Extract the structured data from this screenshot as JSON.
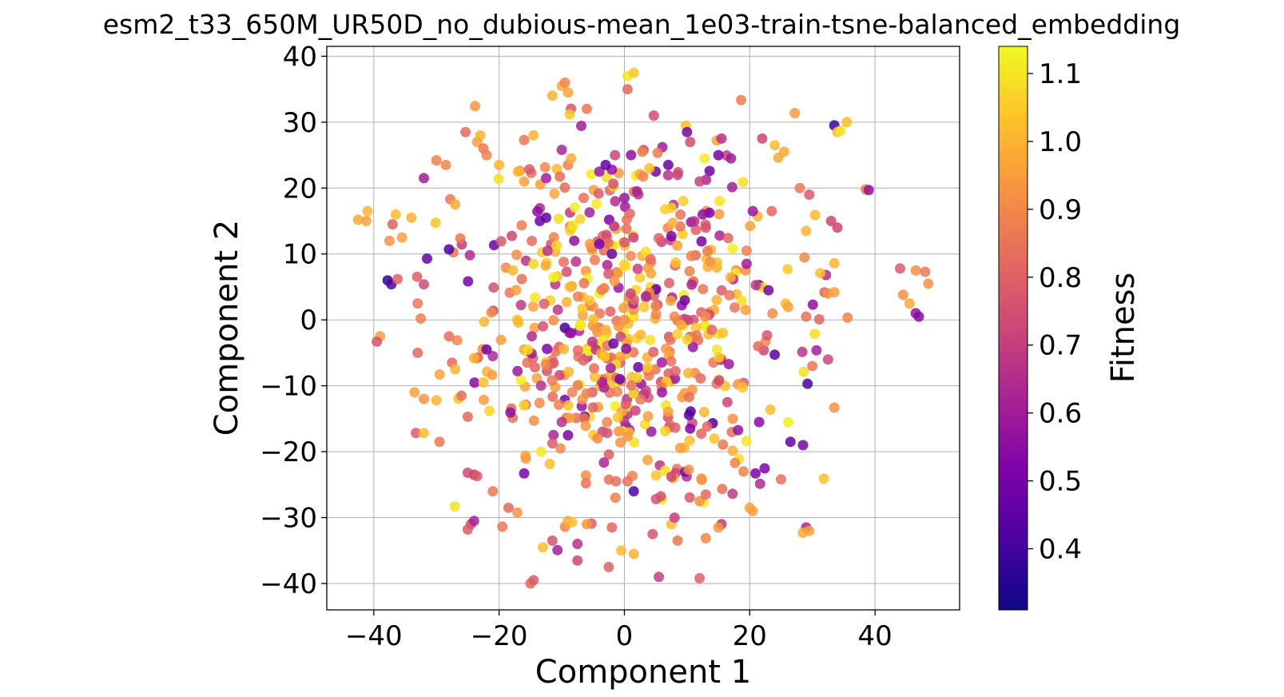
{
  "chart_data": {
    "type": "scatter",
    "title": "esm2_t33_650M_UR50D_no_dubious-mean_1e03-train-tsne-balanced_embedding",
    "xlabel": "Component 1",
    "ylabel": "Component 2",
    "xlim": [
      -47.5,
      53.5
    ],
    "ylim": [
      -44,
      41.5
    ],
    "xticks": [
      -40,
      -20,
      0,
      20,
      40
    ],
    "yticks": [
      -40,
      -30,
      -20,
      -10,
      0,
      10,
      20,
      30,
      40
    ],
    "grid": true,
    "colormap": "plasma",
    "colorbar": {
      "label": "Fitness",
      "min": 0.31,
      "max": 1.14,
      "ticks": [
        "0.4",
        "0.5",
        "0.6",
        "0.7",
        "0.8",
        "0.9",
        "1.0",
        "1.1"
      ]
    },
    "point_count": 760,
    "points": [
      {
        "x": -42.5,
        "y": 15.2,
        "c": 0.98
      },
      {
        "x": -41.0,
        "y": 16.5,
        "c": 1.0
      },
      {
        "x": -41.2,
        "y": 15.0,
        "c": 0.96
      },
      {
        "x": -37.5,
        "y": 12.0,
        "c": 0.92
      },
      {
        "x": -37.0,
        "y": 14.5,
        "c": 0.8
      },
      {
        "x": -36.5,
        "y": 16.0,
        "c": 1.02
      },
      {
        "x": -35.5,
        "y": 12.5,
        "c": 0.96
      },
      {
        "x": -34.0,
        "y": 15.5,
        "c": 1.0
      },
      {
        "x": -37.8,
        "y": 6.0,
        "c": 0.36
      },
      {
        "x": -37.2,
        "y": 5.4,
        "c": 0.42
      },
      {
        "x": -36.2,
        "y": 6.2,
        "c": 0.8
      },
      {
        "x": -39.0,
        "y": -2.5,
        "c": 0.96
      },
      {
        "x": -39.5,
        "y": -3.3,
        "c": 0.76
      },
      {
        "x": -32.0,
        "y": 21.5,
        "c": 0.6
      },
      {
        "x": -30.0,
        "y": 24.2,
        "c": 0.88
      },
      {
        "x": -28.5,
        "y": 23.5,
        "c": 0.9
      },
      {
        "x": -31.5,
        "y": 9.3,
        "c": 0.46
      },
      {
        "x": -28.0,
        "y": 10.7,
        "c": 0.42
      },
      {
        "x": -27.8,
        "y": 18.3,
        "c": 0.86
      },
      {
        "x": -27.0,
        "y": 17.5,
        "c": 0.98
      },
      {
        "x": -33.0,
        "y": 2.5,
        "c": 0.86
      },
      {
        "x": -32.5,
        "y": 0.2,
        "c": 0.88
      },
      {
        "x": -33.0,
        "y": -5.0,
        "c": 0.82
      },
      {
        "x": -33.5,
        "y": -11.0,
        "c": 0.96
      },
      {
        "x": -32.0,
        "y": -12.0,
        "c": 0.92
      },
      {
        "x": -30.0,
        "y": -12.2,
        "c": 1.0
      },
      {
        "x": -28.0,
        "y": -2.5,
        "c": 0.84
      },
      {
        "x": -27.5,
        "y": -6.5,
        "c": 0.82
      },
      {
        "x": -27.0,
        "y": -7.5,
        "c": 1.0
      },
      {
        "x": -29.5,
        "y": -18.5,
        "c": 0.86
      },
      {
        "x": -25.0,
        "y": -14.7,
        "c": 0.82
      },
      {
        "x": -25.0,
        "y": -23.2,
        "c": 0.74
      },
      {
        "x": -24.0,
        "y": -23.5,
        "c": 0.72
      },
      {
        "x": -23.5,
        "y": -23.7,
        "c": 0.78
      },
      {
        "x": -24.5,
        "y": -31.0,
        "c": 0.74
      },
      {
        "x": -24.0,
        "y": -30.5,
        "c": 0.62
      },
      {
        "x": -25.0,
        "y": -31.8,
        "c": 0.78
      },
      {
        "x": -23.5,
        "y": 27.0,
        "c": 0.96
      },
      {
        "x": -23.0,
        "y": 28.0,
        "c": 1.0
      },
      {
        "x": -22.5,
        "y": 26.0,
        "c": 0.86
      },
      {
        "x": -22.0,
        "y": 25.0,
        "c": 0.88
      },
      {
        "x": -20.0,
        "y": 23.5,
        "c": 1.0
      },
      {
        "x": -16.0,
        "y": 27.3,
        "c": 0.86
      },
      {
        "x": -14.5,
        "y": 28.0,
        "c": 1.0
      },
      {
        "x": -17.0,
        "y": 22.5,
        "c": 1.0
      },
      {
        "x": -16.0,
        "y": 21.0,
        "c": 0.96
      },
      {
        "x": -12.5,
        "y": 21.5,
        "c": 0.6
      },
      {
        "x": -10.0,
        "y": 25.8,
        "c": 0.62
      },
      {
        "x": -9.0,
        "y": 23.5,
        "c": 0.88
      },
      {
        "x": -8.5,
        "y": 24.5,
        "c": 0.98
      },
      {
        "x": -11.5,
        "y": 34.0,
        "c": 1.0
      },
      {
        "x": -10.0,
        "y": 35.5,
        "c": 0.98
      },
      {
        "x": -9.0,
        "y": 34.5,
        "c": 0.96
      },
      {
        "x": -9.5,
        "y": 36.0,
        "c": 0.9
      },
      {
        "x": -6.0,
        "y": 32.0,
        "c": 0.86
      },
      {
        "x": 0.5,
        "y": 37.0,
        "c": 1.1
      },
      {
        "x": 1.5,
        "y": 37.5,
        "c": 1.04
      },
      {
        "x": 0.5,
        "y": 35.0,
        "c": 0.82
      },
      {
        "x": 4.7,
        "y": 31.0,
        "c": 0.74
      },
      {
        "x": 10.0,
        "y": 28.5,
        "c": 0.5
      },
      {
        "x": 10.5,
        "y": 27.0,
        "c": 0.74
      },
      {
        "x": 15.5,
        "y": 27.5,
        "c": 0.66
      },
      {
        "x": 15.0,
        "y": 25.0,
        "c": 0.5
      },
      {
        "x": 17.0,
        "y": 24.5,
        "c": 0.6
      },
      {
        "x": 22.0,
        "y": 27.5,
        "c": 0.72
      },
      {
        "x": 24.0,
        "y": 26.5,
        "c": 1.02
      },
      {
        "x": 25.5,
        "y": 25.5,
        "c": 0.98
      },
      {
        "x": 33.5,
        "y": 29.5,
        "c": 0.38
      },
      {
        "x": 34.0,
        "y": 28.5,
        "c": 1.02
      },
      {
        "x": 35.5,
        "y": 30.0,
        "c": 1.02
      },
      {
        "x": 34.5,
        "y": 28.7,
        "c": 1.1
      },
      {
        "x": 38.5,
        "y": 19.8,
        "c": 0.88
      },
      {
        "x": 39.0,
        "y": 19.7,
        "c": 0.56
      },
      {
        "x": 33.0,
        "y": 15.0,
        "c": 0.72
      },
      {
        "x": 34.0,
        "y": 14.0,
        "c": 0.72
      },
      {
        "x": 33.5,
        "y": 8.6,
        "c": 1.0
      },
      {
        "x": 32.5,
        "y": 4.0,
        "c": 0.92
      },
      {
        "x": 33.5,
        "y": 4.2,
        "c": 0.96
      },
      {
        "x": 29.0,
        "y": 13.5,
        "c": 1.0
      },
      {
        "x": 29.5,
        "y": 19.0,
        "c": 0.78
      },
      {
        "x": 28.0,
        "y": 20.0,
        "c": 0.86
      },
      {
        "x": 29.0,
        "y": 0.5,
        "c": 0.84
      },
      {
        "x": 30.0,
        "y": -7.0,
        "c": 0.86
      },
      {
        "x": 32.5,
        "y": -6.0,
        "c": 0.72
      },
      {
        "x": 33.5,
        "y": -13.3,
        "c": 0.92
      },
      {
        "x": 26.5,
        "y": -18.5,
        "c": 0.46
      },
      {
        "x": 28.5,
        "y": -19.0,
        "c": 0.5
      },
      {
        "x": 29.0,
        "y": -31.5,
        "c": 0.62
      },
      {
        "x": 28.5,
        "y": -32.3,
        "c": 0.98
      },
      {
        "x": 29.5,
        "y": -32.0,
        "c": 0.96
      },
      {
        "x": 25.0,
        "y": -24.2,
        "c": 0.84
      },
      {
        "x": 20.0,
        "y": -28.5,
        "c": 0.96
      },
      {
        "x": 20.5,
        "y": -29.0,
        "c": 0.96
      },
      {
        "x": 44.0,
        "y": 7.8,
        "c": 0.78
      },
      {
        "x": 46.5,
        "y": 7.5,
        "c": 0.92
      },
      {
        "x": 48.0,
        "y": 7.3,
        "c": 0.86
      },
      {
        "x": 44.5,
        "y": 3.8,
        "c": 0.92
      },
      {
        "x": 45.5,
        "y": 2.5,
        "c": 0.98
      },
      {
        "x": 46.5,
        "y": 1.0,
        "c": 0.56
      },
      {
        "x": 47.0,
        "y": 0.5,
        "c": 0.54
      },
      {
        "x": 48.5,
        "y": 5.5,
        "c": 0.92
      },
      {
        "x": -15.0,
        "y": -40.0,
        "c": 0.82
      },
      {
        "x": -14.5,
        "y": -39.5,
        "c": 0.78
      },
      {
        "x": -13.0,
        "y": -34.5,
        "c": 1.02
      },
      {
        "x": -11.5,
        "y": -33.5,
        "c": 0.76
      },
      {
        "x": -7.5,
        "y": -34.0,
        "c": 0.66
      },
      {
        "x": -7.5,
        "y": -36.5,
        "c": 0.72
      },
      {
        "x": -2.5,
        "y": -37.5,
        "c": 0.8
      },
      {
        "x": -0.5,
        "y": -35.0,
        "c": 1.02
      },
      {
        "x": 1.5,
        "y": -35.5,
        "c": 1.0
      },
      {
        "x": 5.5,
        "y": -39.0,
        "c": 0.7
      },
      {
        "x": 12.0,
        "y": -39.2,
        "c": 0.8
      },
      {
        "x": 8.5,
        "y": -33.5,
        "c": 0.86
      },
      {
        "x": 15.5,
        "y": -31.0,
        "c": 0.68
      },
      {
        "x": 15.0,
        "y": -31.5,
        "c": 0.94
      },
      {
        "x": 4.5,
        "y": -32.5,
        "c": 0.76
      },
      {
        "x": 7.5,
        "y": -31.0,
        "c": 1.02
      },
      {
        "x": 8.0,
        "y": -30.0,
        "c": 0.7
      },
      {
        "x": -21.0,
        "y": -26.0,
        "c": 0.86
      },
      {
        "x": -18.5,
        "y": -28.5,
        "c": 0.82
      },
      {
        "x": -16.0,
        "y": -23.3,
        "c": 0.5
      },
      {
        "x": -6.0,
        "y": -31.0,
        "c": 0.94
      },
      {
        "x": -2.0,
        "y": -31.5,
        "c": 0.82
      },
      {
        "x": 0.5,
        "y": -24.5,
        "c": 0.84
      },
      {
        "x": 1.5,
        "y": -26.0,
        "c": 0.42
      },
      {
        "x": 12.0,
        "y": -27.5,
        "c": 0.92
      },
      {
        "x": 13.0,
        "y": -26.5,
        "c": 0.82
      },
      {
        "x": 19.0,
        "y": -23.0,
        "c": 0.88
      },
      {
        "x": 21.5,
        "y": -15.5,
        "c": 0.54
      },
      {
        "x": -21.0,
        "y": -5.5,
        "c": 0.64
      },
      {
        "x": -22.5,
        "y": -9.5,
        "c": 1.02
      },
      {
        "x": -24.0,
        "y": -5.8,
        "c": 1.0
      },
      {
        "x": -22.0,
        "y": -4.5,
        "c": 0.5
      },
      {
        "x": -26.0,
        "y": -11.5,
        "c": 0.84
      },
      {
        "x": 0.0,
        "y": 0.0,
        "c": 0.92
      },
      {
        "x": 1.0,
        "y": 4.0,
        "c": 0.72
      },
      {
        "x": -2.0,
        "y": 10.0,
        "c": 0.48
      },
      {
        "x": -3.0,
        "y": -1.5,
        "c": 1.0
      },
      {
        "x": -9.5,
        "y": -1.2,
        "c": 0.4
      },
      {
        "x": -8.5,
        "y": -2.0,
        "c": 0.56
      },
      {
        "x": 10.0,
        "y": -3.0,
        "c": 1.06
      },
      {
        "x": 8.0,
        "y": 0.5,
        "c": 0.9
      },
      {
        "x": 5.0,
        "y": 22.5,
        "c": 0.5
      },
      {
        "x": 4.0,
        "y": 23.0,
        "c": 1.02
      },
      {
        "x": 7.0,
        "y": 23.5,
        "c": 0.48
      },
      {
        "x": 8.5,
        "y": 22.0,
        "c": 0.72
      },
      {
        "x": 12.0,
        "y": 21.0,
        "c": 0.72
      },
      {
        "x": 7.5,
        "y": 17.0,
        "c": 1.06
      },
      {
        "x": 6.5,
        "y": 16.8,
        "c": 1.06
      },
      {
        "x": 12.5,
        "y": 16.0,
        "c": 0.56
      },
      {
        "x": 13.0,
        "y": 14.0,
        "c": 0.76
      },
      {
        "x": 20.5,
        "y": 16.5,
        "c": 0.58
      },
      {
        "x": 23.5,
        "y": 16.5,
        "c": 0.82
      },
      {
        "x": 19.5,
        "y": 10.5,
        "c": 0.88
      },
      {
        "x": 19.5,
        "y": 8.5,
        "c": 0.6
      },
      {
        "x": 23.0,
        "y": 4.5,
        "c": 0.5
      },
      {
        "x": -5.5,
        "y": 11.5,
        "c": 0.94
      },
      {
        "x": -4.0,
        "y": 11.5,
        "c": 0.5
      },
      {
        "x": -13.5,
        "y": 15.0,
        "c": 0.48
      },
      {
        "x": -12.5,
        "y": 15.5,
        "c": 0.46
      },
      {
        "x": -8.0,
        "y": 12.0,
        "c": 0.56
      },
      {
        "x": 7.5,
        "y": -23.8,
        "c": 0.72
      },
      {
        "x": -15.5,
        "y": -6.5,
        "c": 0.84
      },
      {
        "x": -10.0,
        "y": -15.5,
        "c": 0.66
      },
      {
        "x": -9.0,
        "y": -17.5,
        "c": 0.5
      },
      {
        "x": 10.5,
        "y": -16.5,
        "c": 0.52
      },
      {
        "x": 6.0,
        "y": -11.0,
        "c": 0.58
      },
      {
        "x": -4.0,
        "y": 22.5,
        "c": 0.58
      },
      {
        "x": -6.5,
        "y": 18.5,
        "c": 0.84
      },
      {
        "x": -2.0,
        "y": 22.8,
        "c": 0.56
      },
      {
        "x": 0.0,
        "y": 18.5,
        "c": 0.58
      },
      {
        "x": 2.0,
        "y": 19.5,
        "c": 0.62
      },
      {
        "x": -1.5,
        "y": 25.0,
        "c": 0.72
      },
      {
        "x": -3.0,
        "y": 23.5,
        "c": 0.46
      }
    ]
  }
}
